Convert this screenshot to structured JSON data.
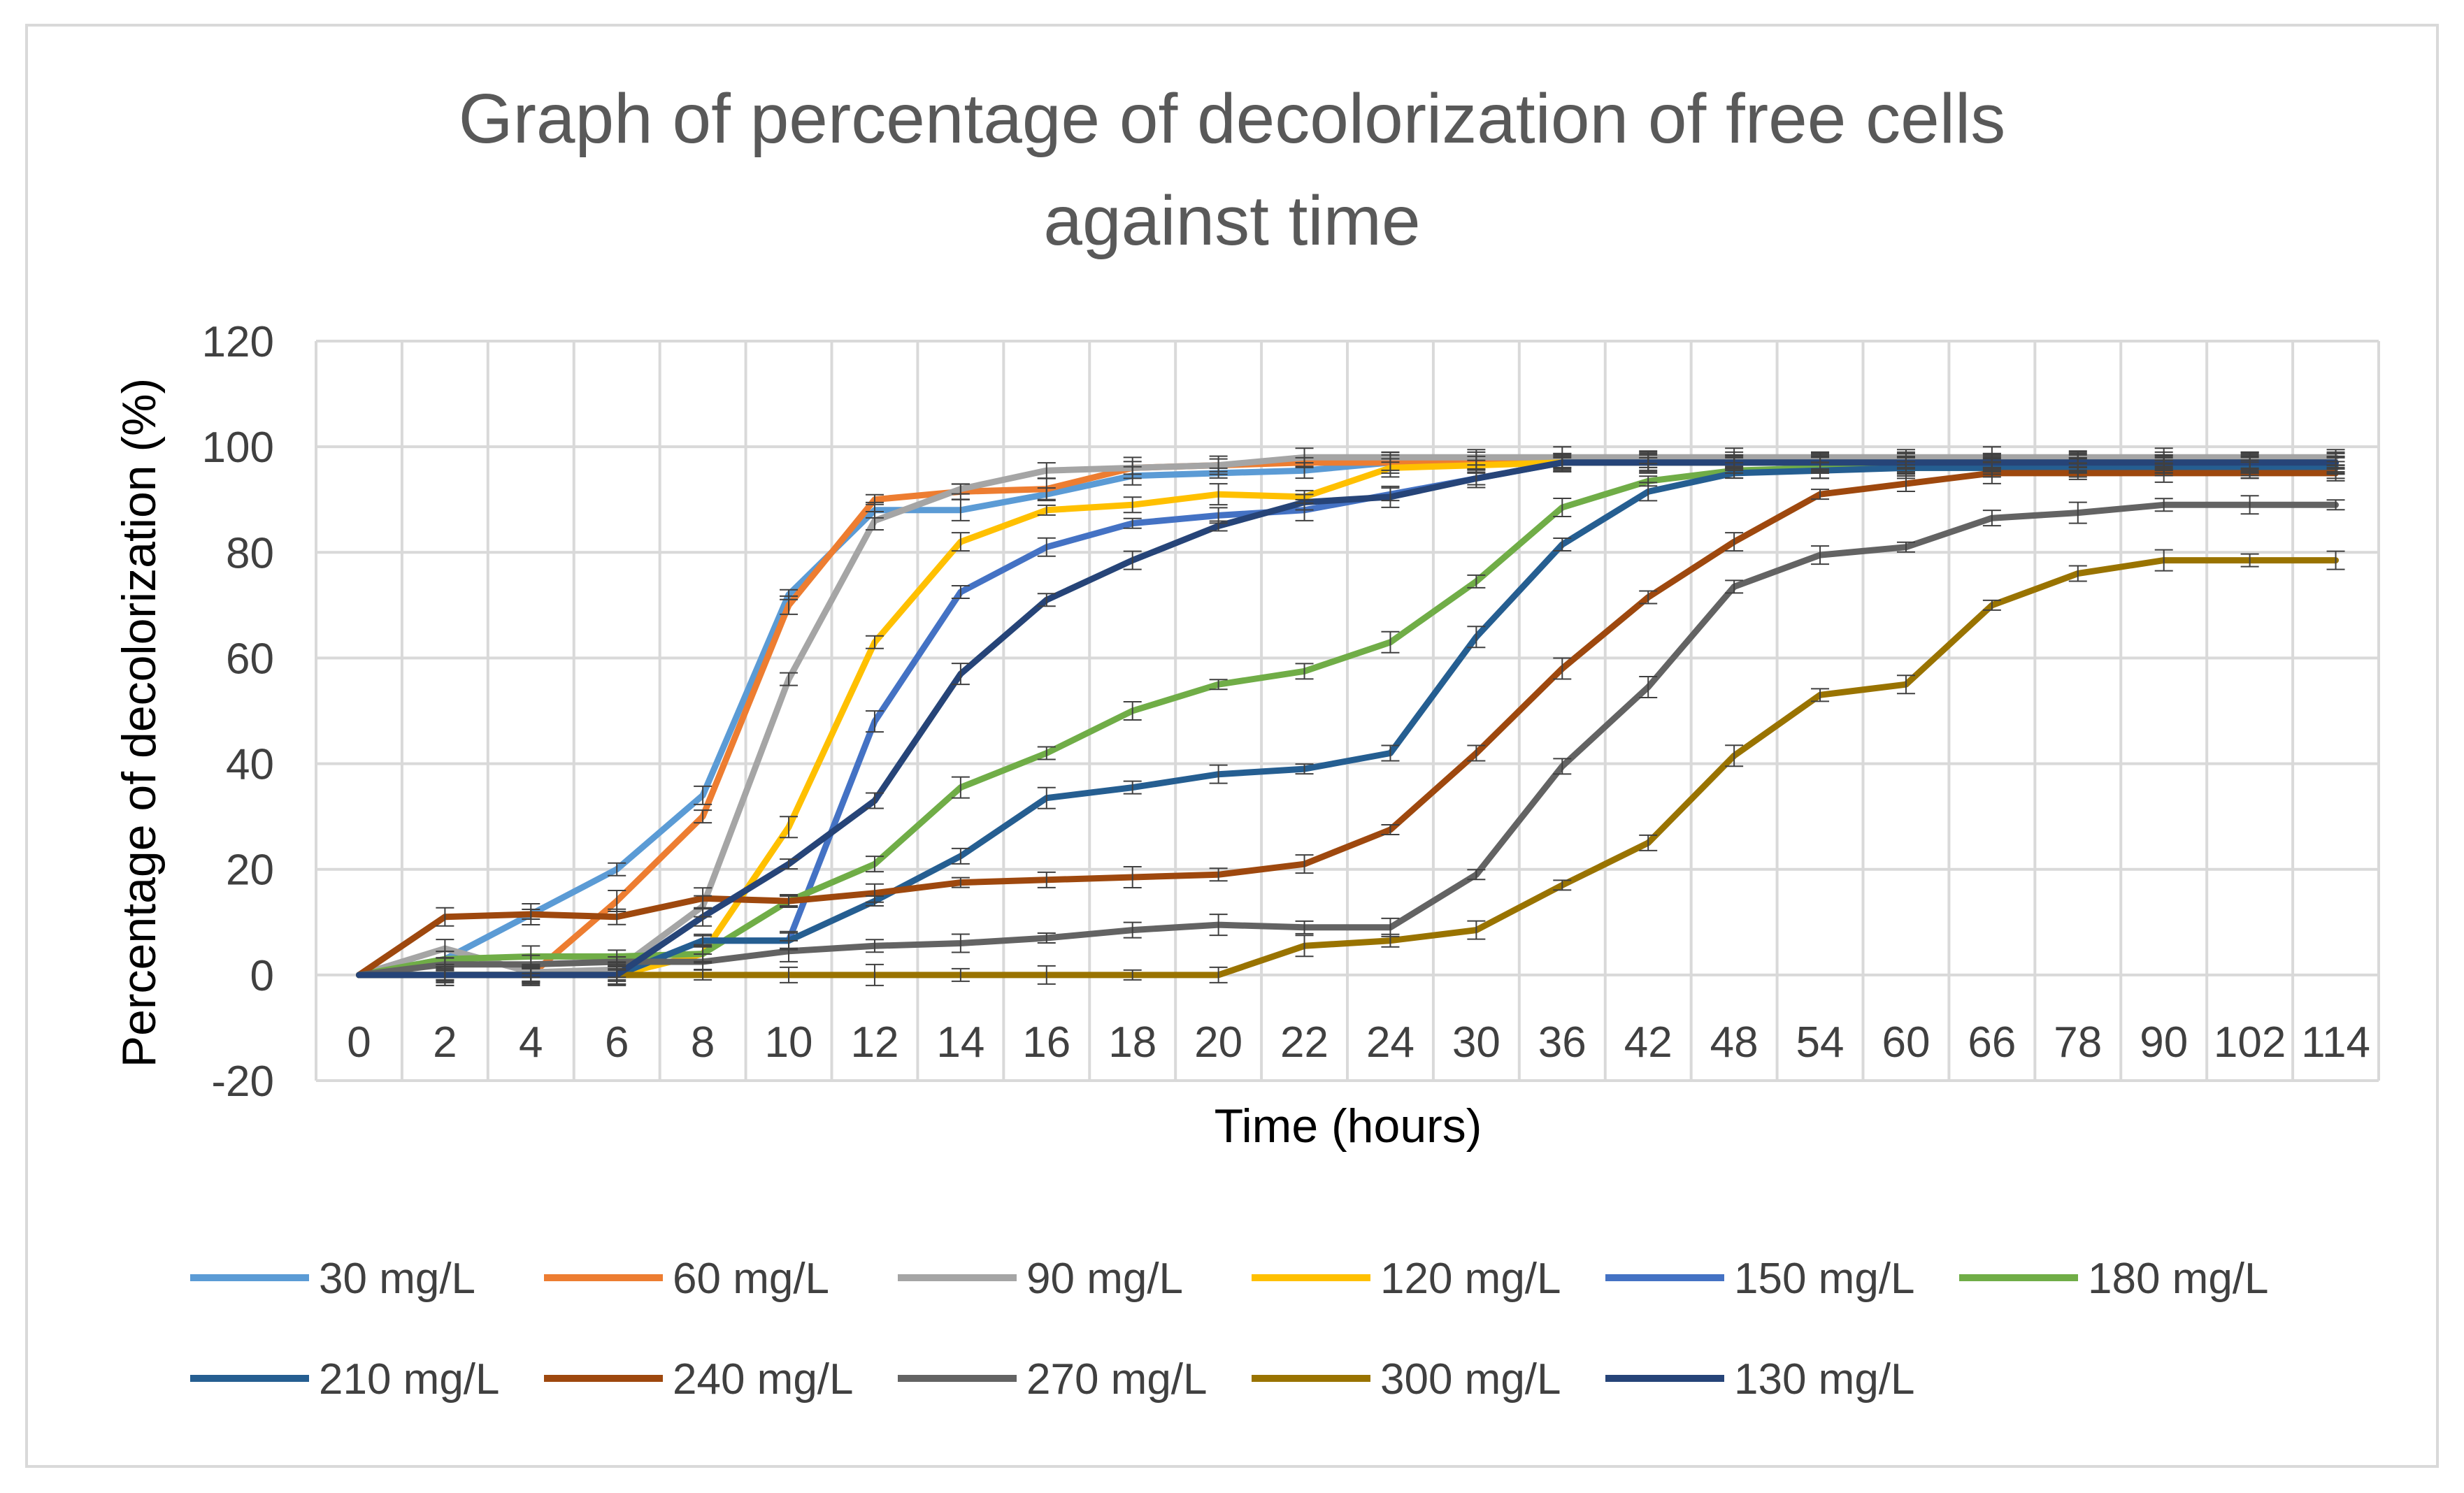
{
  "chart_data": {
    "type": "line",
    "title": "Graph of percentage of decolorization of free cells against time",
    "title_lines": [
      "Graph of percentage of decolorization of free cells",
      "against time"
    ],
    "xlabel": "Time (hours)",
    "ylabel": "Percentage of decolorization (%)",
    "ylim": [
      -20,
      120
    ],
    "yticks": [
      "-20",
      "0",
      "20",
      "40",
      "60",
      "80",
      "100",
      "120"
    ],
    "categories": [
      "0",
      "2",
      "4",
      "6",
      "8",
      "10",
      "12",
      "14",
      "16",
      "18",
      "20",
      "22",
      "24",
      "30",
      "36",
      "42",
      "48",
      "54",
      "60",
      "66",
      "78",
      "90",
      "102",
      "114"
    ],
    "grid": true,
    "legend_position": "bottom",
    "error_bars": true,
    "series": [
      {
        "name": "30 mg/L",
        "color": "#5b9bd5",
        "values": [
          0,
          3,
          11.5,
          20,
          34,
          72,
          88,
          88,
          91,
          94.5,
          95,
          95.5,
          97,
          97,
          97,
          97,
          97,
          97,
          97,
          97,
          97,
          97,
          97,
          97
        ]
      },
      {
        "name": "60 mg/L",
        "color": "#ed7d31",
        "values": [
          0,
          0,
          0,
          14,
          30,
          70,
          90,
          91.5,
          92,
          96,
          96.5,
          97,
          97,
          97,
          97,
          97,
          97,
          97,
          97,
          97,
          97,
          97,
          97,
          97
        ]
      },
      {
        "name": "90 mg/L",
        "color": "#a5a5a5",
        "values": [
          0,
          5,
          0.5,
          1,
          13,
          56,
          86,
          92,
          95.5,
          96,
          96.5,
          98,
          98,
          98,
          98,
          98,
          98,
          98,
          98,
          98,
          98,
          98,
          98,
          98
        ]
      },
      {
        "name": "120 mg/L",
        "color": "#ffc000",
        "values": [
          0,
          0,
          0,
          0,
          4,
          28,
          63,
          82,
          88,
          89,
          91,
          90.5,
          96,
          96.5,
          97,
          97,
          97,
          97,
          97,
          97,
          97,
          97,
          97,
          97
        ]
      },
      {
        "name": "150 mg/L",
        "color": "#4472c4",
        "values": [
          0,
          0,
          0,
          0,
          6.5,
          6.5,
          48,
          72.5,
          81,
          85.5,
          87,
          88,
          91,
          94,
          97,
          97,
          97,
          97,
          97,
          97,
          97,
          97,
          97,
          97
        ]
      },
      {
        "name": "180 mg/L",
        "color": "#70ad47",
        "values": [
          0,
          3,
          3.5,
          3.5,
          4,
          14,
          21,
          35.5,
          42,
          50,
          55,
          57.5,
          63,
          74.5,
          88.5,
          93.5,
          95.5,
          96,
          96,
          96,
          96,
          96,
          96,
          96
        ]
      },
      {
        "name": "210 mg/L",
        "color": "#255e91",
        "values": [
          0,
          0,
          0,
          0,
          6.5,
          6.5,
          14,
          22.5,
          33.5,
          35.5,
          38,
          39,
          42,
          64,
          81.5,
          91.5,
          95,
          95.5,
          96,
          96,
          96,
          96,
          96,
          96
        ]
      },
      {
        "name": "240 mg/L",
        "color": "#9e480e",
        "values": [
          0,
          11,
          11.5,
          11,
          14.5,
          14,
          15.5,
          17.5,
          18,
          18.5,
          19,
          21,
          27.5,
          42,
          58,
          71.5,
          82,
          91,
          93,
          95,
          95,
          95,
          95,
          95
        ]
      },
      {
        "name": "270 mg/L",
        "color": "#636363",
        "values": [
          0,
          2,
          2,
          2.5,
          2.5,
          4.5,
          5.5,
          6,
          7,
          8.5,
          9.5,
          9,
          9,
          19,
          39.5,
          54.5,
          73.5,
          79.5,
          81,
          86.5,
          87.5,
          89,
          89,
          89
        ]
      },
      {
        "name": "300 mg/L",
        "color": "#997300",
        "values": [
          0,
          0,
          0,
          0,
          0,
          0,
          0,
          0,
          0,
          0,
          0,
          5.5,
          6.5,
          8.5,
          17,
          25,
          41.5,
          53,
          55,
          70,
          76,
          78.5,
          78.5,
          78.5
        ]
      },
      {
        "name": "130 mg/L",
        "color": "#264478",
        "values": [
          0,
          0,
          0,
          0,
          11,
          21,
          33,
          57,
          71,
          78.5,
          85,
          89.5,
          90.5,
          94,
          97,
          97,
          97,
          97,
          97,
          97,
          97,
          97,
          97,
          97
        ]
      }
    ]
  }
}
